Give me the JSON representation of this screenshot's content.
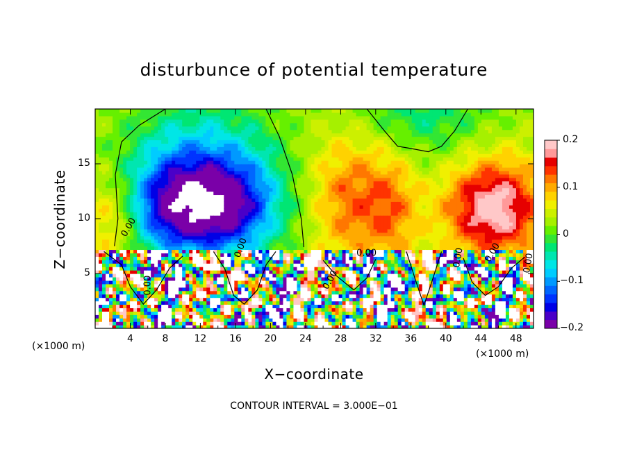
{
  "chart_data": {
    "type": "heatmap",
    "title": "disturbunce of potential temperature",
    "xlabel": "X−coordinate",
    "ylabel": "Z−coordinate",
    "x_unit": "(×1000 m)",
    "x_unit_right": "(×1000 m)",
    "annotation": "CONTOUR INTERVAL = 3.000E−01",
    "xlim": [
      0,
      50
    ],
    "ylim": [
      0,
      20
    ],
    "x_ticks": [
      "4",
      "8",
      "12",
      "16",
      "20",
      "24",
      "28",
      "32",
      "36",
      "40",
      "44",
      "48"
    ],
    "y_ticks": [
      "5",
      "10",
      "15"
    ],
    "colorbar": {
      "min": -0.2,
      "max": 0.2,
      "tick_labels": [
        "0.2",
        "0.1",
        "0",
        "−0.1",
        "−0.2"
      ],
      "colors": [
        "#7a00a8",
        "#4a00c8",
        "#0000e6",
        "#0033ff",
        "#0066ff",
        "#0099ff",
        "#00ccff",
        "#00e6e6",
        "#00e6b0",
        "#00e673",
        "#33e633",
        "#66f000",
        "#a6f000",
        "#ccf000",
        "#f0f000",
        "#ffd200",
        "#ffaa00",
        "#ff7700",
        "#ff3300",
        "#e60000",
        "#ff9999",
        "#ffc8c8"
      ]
    },
    "contour_labels": [
      "0.00",
      "0.00",
      "0.00",
      "0.00",
      "0.00",
      "0.00",
      "0.00",
      "0.00"
    ]
  }
}
